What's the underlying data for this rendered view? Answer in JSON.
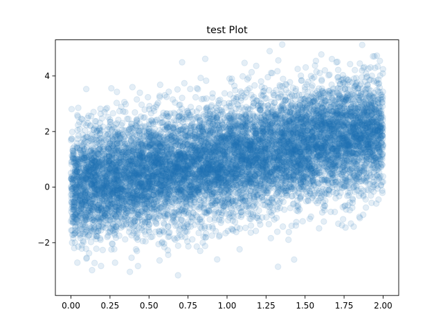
{
  "chart_data": {
    "type": "scatter",
    "title": "test Plot",
    "xlabel": "",
    "ylabel": "",
    "xlim": [
      -0.1,
      2.1
    ],
    "ylim": [
      -3.9,
      5.3
    ],
    "xticks": [
      0.0,
      0.25,
      0.5,
      0.75,
      1.0,
      1.25,
      1.5,
      1.75,
      2.0
    ],
    "xtick_labels": [
      "0.00",
      "0.25",
      "0.50",
      "0.75",
      "1.00",
      "1.25",
      "1.50",
      "1.75",
      "2.00"
    ],
    "yticks": [
      -2,
      0,
      2,
      4
    ],
    "ytick_labels": [
      "−2",
      "0",
      "2",
      "4"
    ],
    "grid": false,
    "marker_color": "#1f77b4",
    "marker_alpha": 0.12,
    "series": [
      {
        "x_range": [
          0.0,
          2.0
        ],
        "count": 10000,
        "trend": {
          "intercept": 0.0,
          "slope": 1.0
        },
        "noise_sd": 1.0
      }
    ]
  }
}
